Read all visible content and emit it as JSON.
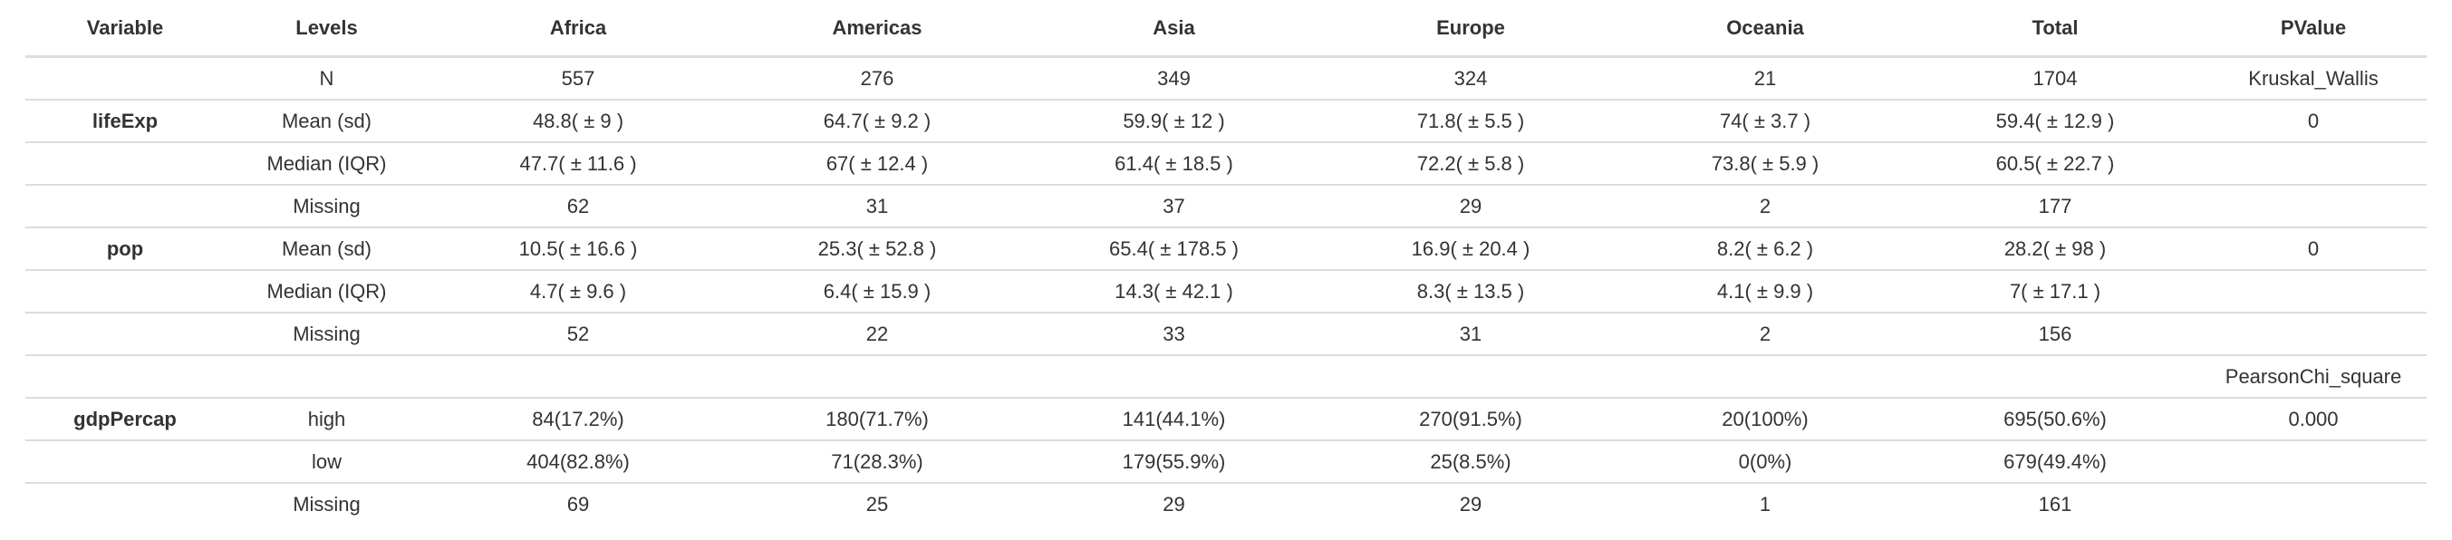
{
  "headers": [
    "Variable",
    "Levels",
    "Africa",
    "Americas",
    "Asia",
    "Europe",
    "Oceania",
    "Total",
    "PValue"
  ],
  "rows": [
    [
      "",
      "N",
      "557",
      "276",
      "349",
      "324",
      "21",
      "1704",
      "Kruskal_Wallis"
    ],
    [
      "lifeExp",
      "Mean (sd)",
      "48.8( ± 9 )",
      "64.7( ± 9.2 )",
      "59.9( ± 12 )",
      "71.8( ± 5.5 )",
      "74( ± 3.7 )",
      "59.4( ± 12.9 )",
      "0"
    ],
    [
      "",
      "Median (IQR)",
      "47.7( ± 11.6 )",
      "67( ± 12.4 )",
      "61.4( ± 18.5 )",
      "72.2( ± 5.8 )",
      "73.8( ± 5.9 )",
      "60.5( ± 22.7 )",
      ""
    ],
    [
      "",
      "Missing",
      "62",
      "31",
      "37",
      "29",
      "2",
      "177",
      ""
    ],
    [
      "pop",
      "Mean (sd)",
      "10.5( ± 16.6 )",
      "25.3( ± 52.8 )",
      "65.4( ± 178.5 )",
      "16.9( ± 20.4 )",
      "8.2( ± 6.2 )",
      "28.2( ± 98 )",
      "0"
    ],
    [
      "",
      "Median (IQR)",
      "4.7( ± 9.6 )",
      "6.4( ± 15.9 )",
      "14.3( ± 42.1 )",
      "8.3( ± 13.5 )",
      "4.1( ± 9.9 )",
      "7( ± 17.1 )",
      ""
    ],
    [
      "",
      "Missing",
      "52",
      "22",
      "33",
      "31",
      "2",
      "156",
      ""
    ],
    [
      "",
      "",
      "",
      "",
      "",
      "",
      "",
      "",
      "PearsonChi_square"
    ],
    [
      "gdpPercap",
      "high",
      "84(17.2%)",
      "180(71.7%)",
      "141(44.1%)",
      "270(91.5%)",
      "20(100%)",
      "695(50.6%)",
      "0.000"
    ],
    [
      "",
      "low",
      "404(82.8%)",
      "71(28.3%)",
      "179(55.9%)",
      "25(8.5%)",
      "0(0%)",
      "679(49.4%)",
      ""
    ],
    [
      "",
      "Missing",
      "69",
      "25",
      "29",
      "29",
      "1",
      "161",
      ""
    ]
  ]
}
